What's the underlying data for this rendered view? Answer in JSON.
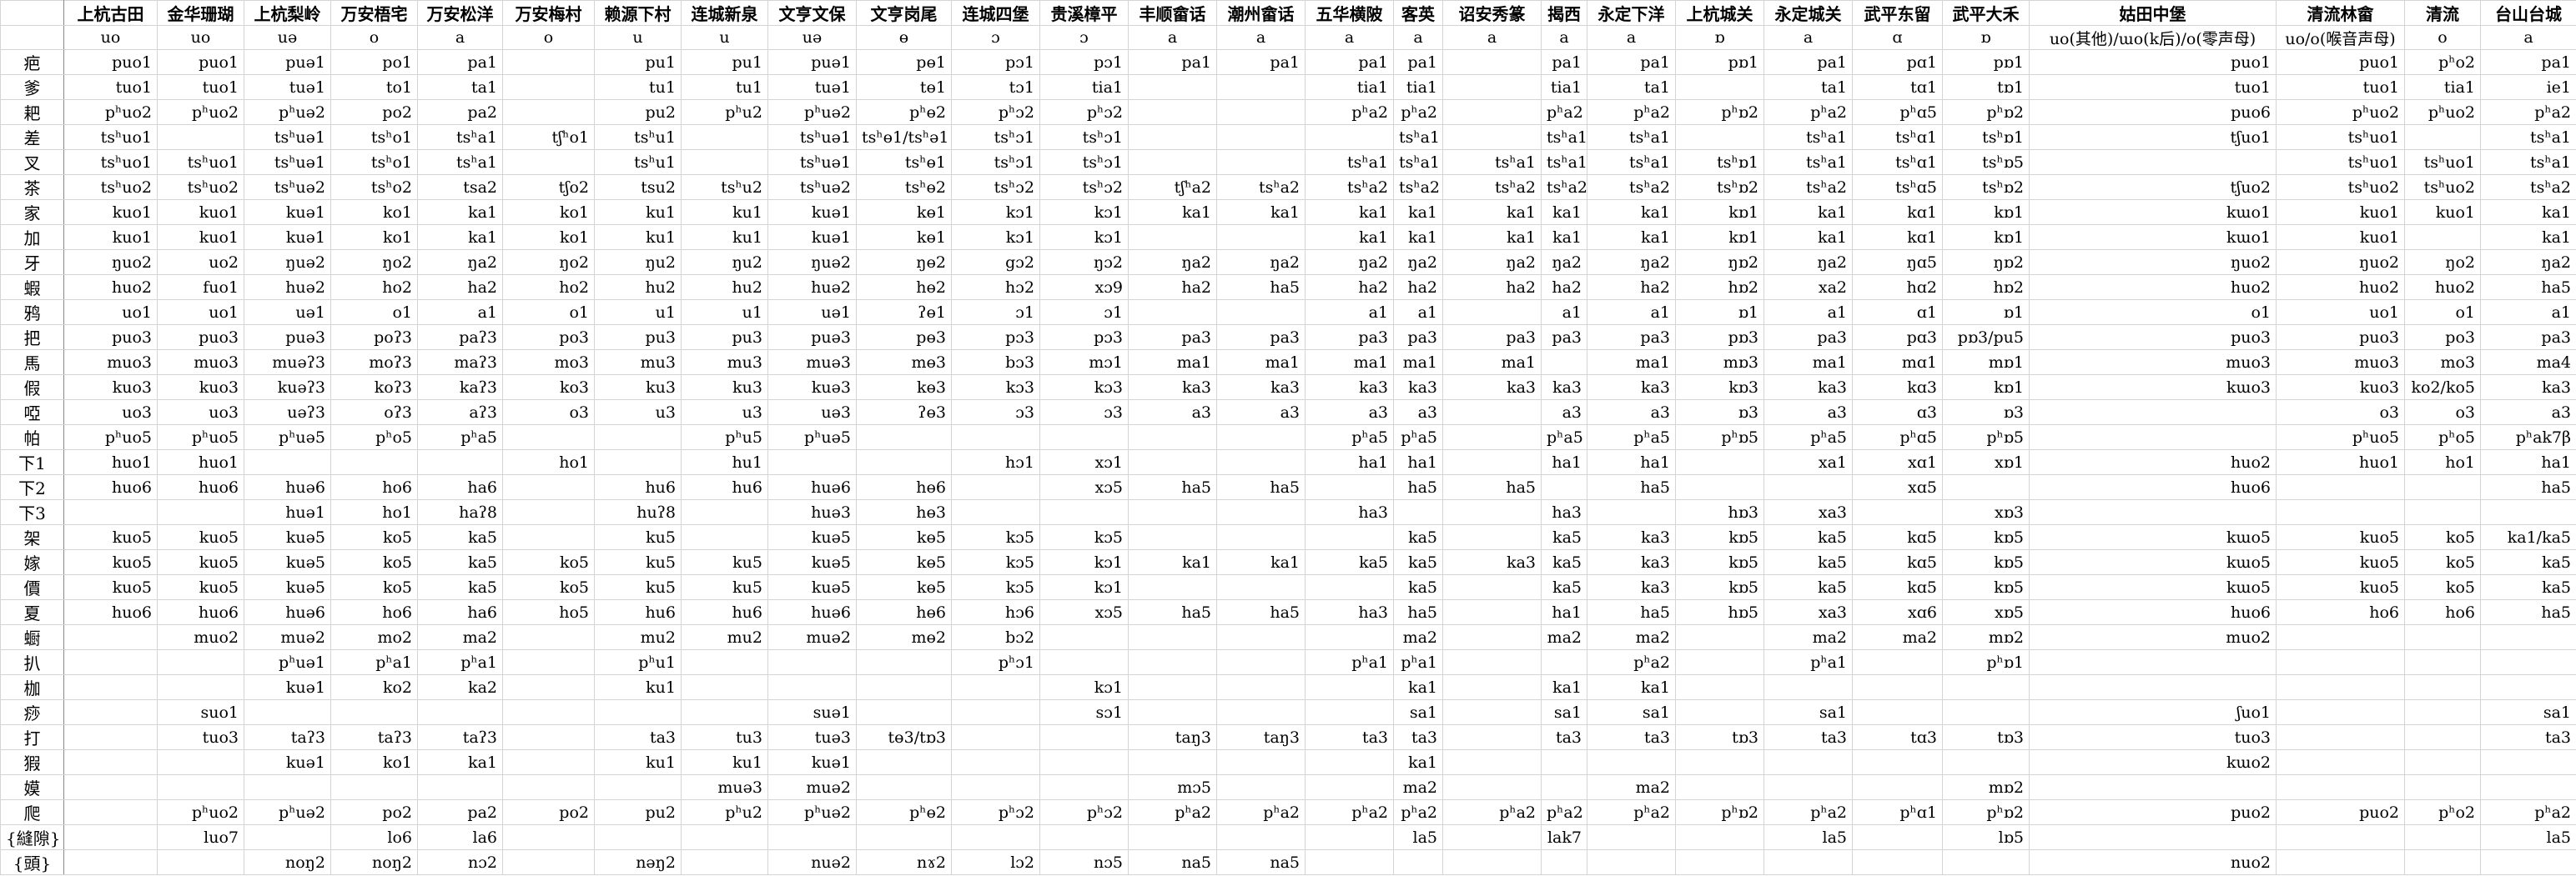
{
  "header": {
    "columns": [
      "上杭古田",
      "金华珊瑚",
      "上杭梨岭",
      "万安梧宅",
      "万安松洋",
      "万安梅村",
      "赖源下村",
      "连城新泉",
      "文亨文保",
      "文亨岗尾",
      "连城四堡",
      "贵溪樟平",
      "丰顺畲话",
      "潮州畲话",
      "五华横陂",
      "客英",
      "诏安秀篆",
      "揭西",
      "永定下洋",
      "上杭城关",
      "永定城关",
      "武平东留",
      "武平大禾",
      "姑田中堡",
      "清流林畲",
      "清流",
      "台山台城"
    ],
    "finals": [
      "uo",
      "uo",
      "uə",
      "o",
      "a",
      "o",
      "u",
      "u",
      "uə",
      "ɵ",
      "ɔ",
      "ɔ",
      "a",
      "a",
      "a",
      "a",
      "a",
      "a",
      "a",
      "ɒ",
      "a",
      "ɑ",
      "ɒ",
      "uo(其他)/ɯo(k后)/o(零声母)",
      "uo/o(喉音声母)",
      "o",
      "a"
    ]
  },
  "table": {
    "rows": [
      [
        "疤",
        "puo1",
        "puo1",
        "puə1",
        "po1",
        "pa1",
        null,
        "pu1",
        "pu1",
        "puə1",
        "pɵ1",
        "pɔ1",
        "pɔ1",
        "pa1",
        "pa1",
        "pa1",
        "pa1",
        null,
        "pa1",
        "pa1",
        "pɒ1",
        "pa1",
        "pɑ1",
        "pɒ1",
        "puo1",
        "puo1",
        "pʰo2",
        "pa1"
      ],
      [
        "爹",
        "tuo1",
        "tuo1",
        "tuə1",
        "to1",
        "ta1",
        null,
        "tu1",
        "tu1",
        "tuə1",
        "tɵ1",
        "tɔ1",
        "tia1",
        null,
        null,
        "tia1",
        "tia1",
        null,
        "tia1",
        "ta1",
        null,
        "ta1",
        "tɑ1",
        "tɒ1",
        "tuo1",
        "tuo1",
        "tia1",
        "ie1"
      ],
      [
        "耙",
        "pʰuo2",
        "pʰuo2",
        "pʰuə2",
        "po2",
        "pa2",
        null,
        "pu2",
        "pʰu2",
        "pʰuə2",
        "pʰɵ2",
        "pʰɔ2",
        "pʰɔ2",
        null,
        null,
        "pʰa2",
        "pʰa2",
        null,
        "pʰa2",
        "pʰa2",
        "pʰɒ2",
        "pʰa2",
        "pʰɑ5",
        "pʰɒ2",
        "puo6",
        "pʰuo2",
        "pʰuo2",
        "pʰa2"
      ],
      [
        "差",
        "tsʰuo1",
        null,
        "tsʰuə1",
        "tsʰo1",
        "tsʰa1",
        "tʃʰo1",
        "tsʰu1",
        null,
        "tsʰuə1",
        "tsʰɵ1/tsʰə1",
        "tsʰɔ1",
        "tsʰɔ1",
        null,
        null,
        null,
        "tsʰa1",
        null,
        "tsʰa1",
        "tsʰa1",
        null,
        "tsʰa1",
        "tsʰɑ1",
        "tsʰɒ1",
        "tʃuo1",
        "tsʰuo1",
        null,
        "tsʰa1"
      ],
      [
        "叉",
        "tsʰuo1",
        "tsʰuo1",
        "tsʰuə1",
        "tsʰo1",
        "tsʰa1",
        null,
        "tsʰu1",
        null,
        "tsʰuə1",
        "tsʰɵ1",
        "tsʰɔ1",
        "tsʰɔ1",
        null,
        null,
        "tsʰa1",
        "tsʰa1",
        "tsʰa1",
        "tsʰa1",
        "tsʰa1",
        "tsʰɒ1",
        "tsʰa1",
        "tsʰɑ1",
        "tsʰɒ5",
        null,
        "tsʰuo1",
        "tsʰuo1",
        "tsʰa1"
      ],
      [
        "茶",
        "tsʰuo2",
        "tsʰuo2",
        "tsʰuə2",
        "tsʰo2",
        "tsa2",
        "tʃo2",
        "tsu2",
        "tsʰu2",
        "tsʰuə2",
        "tsʰɵ2",
        "tsʰɔ2",
        "tsʰɔ2",
        "tʃʰa2",
        "tsʰa2",
        "tsʰa2",
        "tsʰa2",
        "tsʰa2",
        "tsʰa2",
        "tsʰa2",
        "tsʰɒ2",
        "tsʰa2",
        "tsʰɑ5",
        "tsʰɒ2",
        "tʃuo2",
        "tsʰuo2",
        "tsʰuo2",
        "tsʰa2"
      ],
      [
        "家",
        "kuo1",
        "kuo1",
        "kuə1",
        "ko1",
        "ka1",
        "ko1",
        "ku1",
        "ku1",
        "kuə1",
        "kɵ1",
        "kɔ1",
        "kɔ1",
        "ka1",
        "ka1",
        "ka1",
        "ka1",
        "ka1",
        "ka1",
        "ka1",
        "kɒ1",
        "ka1",
        "kɑ1",
        "kɒ1",
        "kɯo1",
        "kuo1",
        "kuo1",
        "ka1"
      ],
      [
        "加",
        "kuo1",
        "kuo1",
        "kuə1",
        "ko1",
        "ka1",
        "ko1",
        "ku1",
        "ku1",
        "kuə1",
        "kɵ1",
        "kɔ1",
        "kɔ1",
        null,
        null,
        "ka1",
        "ka1",
        "ka1",
        "ka1",
        "ka1",
        "kɒ1",
        "ka1",
        "kɑ1",
        "kɒ1",
        "kɯo1",
        "kuo1",
        null,
        "ka1"
      ],
      [
        "牙",
        "ŋuo2",
        "uo2",
        "ŋuə2",
        "ŋo2",
        "ŋa2",
        "ŋo2",
        "ŋu2",
        "ŋu2",
        "ŋuə2",
        "ŋɵ2",
        "gɔ2",
        "ŋɔ2",
        "ŋa2",
        "ŋa2",
        "ŋa2",
        "ŋa2",
        "ŋa2",
        "ŋa2",
        "ŋa2",
        "ŋɒ2",
        "ŋa2",
        "ŋɑ5",
        "ŋɒ2",
        "ŋuo2",
        "ŋuo2",
        "ŋo2",
        "ŋa2"
      ],
      [
        "蝦",
        "huo2",
        "fuo1",
        "huə2",
        "ho2",
        "ha2",
        "ho2",
        "hu2",
        "hu2",
        "huə2",
        "hɵ2",
        "hɔ2",
        "xɔ9",
        "ha2",
        "ha5",
        "ha2",
        "ha2",
        "ha2",
        "ha2",
        "ha2",
        "hɒ2",
        "xa2",
        "hɑ2",
        "hɒ2",
        "huo2",
        "huo2",
        "huo2",
        "ha5"
      ],
      [
        "鸦",
        "uo1",
        "uo1",
        "uə1",
        "o1",
        "a1",
        "o1",
        "u1",
        "u1",
        "uə1",
        "ʔɵ1",
        "ɔ1",
        "ɔ1",
        null,
        null,
        "a1",
        "a1",
        null,
        "a1",
        "a1",
        "ɒ1",
        "a1",
        "ɑ1",
        "ɒ1",
        "o1",
        "uo1",
        "o1",
        "a1"
      ],
      [
        "把",
        "puo3",
        "puo3",
        "puə3",
        "poʔ3",
        "paʔ3",
        "po3",
        "pu3",
        "pu3",
        "puə3",
        "pɵ3",
        "pɔ3",
        "pɔ3",
        "pa3",
        "pa3",
        "pa3",
        "pa3",
        "pa3",
        "pa3",
        "pa3",
        "pɒ3",
        "pa3",
        "pɑ3",
        "pɒ3/pu5",
        "puo3",
        "puo3",
        "po3",
        "pa3"
      ],
      [
        "馬",
        "muo3",
        "muo3",
        "muəʔ3",
        "moʔ3",
        "maʔ3",
        "mo3",
        "mu3",
        "mu3",
        "muə3",
        "mɵ3",
        "bɔ3",
        "mɔ1",
        "ma1",
        "ma1",
        "ma1",
        "ma1",
        "ma1",
        null,
        "ma1",
        "mɒ3",
        "ma1",
        "mɑ1",
        "mɒ1",
        "muo3",
        "muo3",
        "mo3",
        "ma4"
      ],
      [
        "假",
        "kuo3",
        "kuo3",
        "kuəʔ3",
        "koʔ3",
        "kaʔ3",
        "ko3",
        "ku3",
        "ku3",
        "kuə3",
        "kɵ3",
        "kɔ3",
        "kɔ3",
        "ka3",
        "ka3",
        "ka3",
        "ka3",
        "ka3",
        "ka3",
        "ka3",
        "kɒ3",
        "ka3",
        "kɑ3",
        "kɒ1",
        "kɯo3",
        "kuo3",
        "ko2/ko5",
        "ka3"
      ],
      [
        "啞",
        "uo3",
        "uo3",
        "uəʔ3",
        "oʔ3",
        "aʔ3",
        "o3",
        "u3",
        "u3",
        "uə3",
        "ʔɵ3",
        "ɔ3",
        "ɔ3",
        "a3",
        "a3",
        "a3",
        "a3",
        null,
        "a3",
        "a3",
        "ɒ3",
        "a3",
        "ɑ3",
        "ɒ3",
        null,
        "o3",
        "o3",
        "a3"
      ],
      [
        "帕",
        "pʰuo5",
        "pʰuo5",
        "pʰuə5",
        "pʰo5",
        "pʰa5",
        null,
        null,
        "pʰu5",
        "pʰuə5",
        null,
        null,
        null,
        null,
        null,
        "pʰa5",
        "pʰa5",
        null,
        "pʰa5",
        "pʰa5",
        "pʰɒ5",
        "pʰa5",
        "pʰɑ5",
        "pʰɒ5",
        null,
        "pʰuo5",
        "pʰo5",
        "pʰak7β"
      ],
      [
        "下1",
        "huo1",
        "huo1",
        null,
        null,
        null,
        "ho1",
        null,
        "hu1",
        null,
        null,
        "hɔ1",
        "xɔ1",
        null,
        null,
        "ha1",
        "ha1",
        null,
        "ha1",
        "ha1",
        null,
        "xa1",
        "xɑ1",
        "xɒ1",
        "huo2",
        "huo1",
        "ho1",
        "ha1"
      ],
      [
        "下2",
        "huo6",
        "huo6",
        "huə6",
        "ho6",
        "ha6",
        null,
        "hu6",
        "hu6",
        "huə6",
        "hɵ6",
        null,
        "xɔ5",
        "ha5",
        "ha5",
        null,
        "ha5",
        "ha5",
        null,
        "ha5",
        null,
        null,
        "xɑ5",
        null,
        "huo6",
        null,
        null,
        "ha5"
      ],
      [
        "下3",
        null,
        null,
        "huə1",
        "ho1",
        "haʔ8",
        null,
        "huʔ8",
        null,
        "huə3",
        "hɵ3",
        null,
        null,
        null,
        null,
        "ha3",
        null,
        null,
        "ha3",
        null,
        "hɒ3",
        "xa3",
        null,
        "xɒ3",
        null,
        null,
        null,
        null
      ],
      [
        "架",
        "kuo5",
        "kuo5",
        "kuə5",
        "ko5",
        "ka5",
        null,
        "ku5",
        null,
        "kuə5",
        "kɵ5",
        "kɔ5",
        "kɔ5",
        null,
        null,
        null,
        "ka5",
        null,
        "ka5",
        "ka3",
        "kɒ5",
        "ka5",
        "kɑ5",
        "kɒ5",
        "kɯo5",
        "kuo5",
        "ko5",
        "ka1/ka5"
      ],
      [
        "嫁",
        "kuo5",
        "kuo5",
        "kuə5",
        "ko5",
        "ka5",
        "ko5",
        "ku5",
        "ku5",
        "kuə5",
        "kɵ5",
        "kɔ5",
        "kɔ1",
        "ka1",
        "ka1",
        "ka5",
        "ka5",
        "ka3",
        "ka5",
        "ka3",
        "kɒ5",
        "ka5",
        "kɑ5",
        "kɒ5",
        "kɯo5",
        "kuo5",
        "ko5",
        "ka5"
      ],
      [
        "價",
        "kuo5",
        "kuo5",
        "kuə5",
        "ko5",
        "ka5",
        "ko5",
        "ku5",
        "ku5",
        "kuə5",
        "kɵ5",
        "kɔ5",
        "kɔ1",
        null,
        null,
        null,
        "ka5",
        null,
        "ka5",
        "ka3",
        "kɒ5",
        "ka5",
        "kɑ5",
        "kɒ5",
        "kɯo5",
        "kuo5",
        "ko5",
        "ka5"
      ],
      [
        "夏",
        "huo6",
        "huo6",
        "huə6",
        "ho6",
        "ha6",
        "ho5",
        "hu6",
        "hu6",
        "huə6",
        "hɵ6",
        "hɔ6",
        "xɔ5",
        "ha5",
        "ha5",
        "ha3",
        "ha5",
        null,
        "ha1",
        "ha5",
        "hɒ5",
        "xa3",
        "xɑ6",
        "xɒ5",
        "huo6",
        "ho6",
        "ho6",
        "ha5"
      ],
      [
        "蟵",
        null,
        "muo2",
        "muə2",
        "mo2",
        "ma2",
        null,
        "mu2",
        "mu2",
        "muə2",
        "mɵ2",
        "bɔ2",
        null,
        null,
        null,
        null,
        "ma2",
        null,
        "ma2",
        "ma2",
        null,
        "ma2",
        "ma2",
        "mɒ2",
        "muo2",
        null,
        null,
        null
      ],
      [
        "扒",
        null,
        null,
        "pʰuə1",
        "pʰa1",
        "pʰa1",
        null,
        "pʰu1",
        null,
        null,
        null,
        "pʰɔ1",
        null,
        null,
        null,
        "pʰa1",
        "pʰa1",
        null,
        null,
        "pʰa2",
        null,
        "pʰa1",
        null,
        "pʰɒ1",
        null,
        null,
        null,
        null
      ],
      [
        "枷",
        null,
        null,
        "kuə1",
        "ko2",
        "ka2",
        null,
        "ku1",
        null,
        null,
        null,
        null,
        "kɔ1",
        null,
        null,
        null,
        "ka1",
        null,
        "ka1",
        "ka1",
        null,
        null,
        null,
        null,
        null,
        null,
        null,
        null
      ],
      [
        "痧",
        null,
        "suo1",
        null,
        null,
        null,
        null,
        null,
        null,
        "suə1",
        null,
        null,
        "sɔ1",
        null,
        null,
        null,
        "sa1",
        null,
        "sa1",
        "sa1",
        null,
        "sa1",
        null,
        null,
        "ʃuo1",
        null,
        null,
        "sa1"
      ],
      [
        "打",
        null,
        "tuo3",
        "taʔ3",
        "taʔ3",
        "taʔ3",
        null,
        "ta3",
        "tu3",
        "tuə3",
        "tɵ3/tɒ3",
        null,
        null,
        "taŋ3",
        "taŋ3",
        "ta3",
        "ta3",
        null,
        "ta3",
        "ta3",
        "tɒ3",
        "ta3",
        "tɑ3",
        "tɒ3",
        "tuo3",
        null,
        null,
        "ta3"
      ],
      [
        "猳",
        null,
        null,
        "kuə1",
        "ko1",
        "ka1",
        null,
        "ku1",
        "ku1",
        "kuə1",
        null,
        null,
        null,
        null,
        null,
        null,
        "ka1",
        null,
        null,
        null,
        null,
        null,
        null,
        null,
        "kɯo2",
        null,
        null,
        null
      ],
      [
        "嫫",
        null,
        null,
        null,
        null,
        null,
        null,
        null,
        "muə3",
        "muə2",
        null,
        null,
        null,
        "mɔ5",
        null,
        null,
        "ma2",
        null,
        null,
        "ma2",
        null,
        null,
        null,
        "mɒ2",
        null,
        null,
        null,
        null
      ],
      [
        "爬",
        null,
        "pʰuo2",
        "pʰuə2",
        "po2",
        "pa2",
        "po2",
        "pu2",
        "pʰu2",
        "pʰuə2",
        "pʰɵ2",
        "pʰɔ2",
        "pʰɔ2",
        "pʰa2",
        "pʰa2",
        "pʰa2",
        "pʰa2",
        "pʰa2",
        "pʰa2",
        "pʰa2",
        "pʰɒ2",
        "pʰa2",
        "pʰɑ1",
        "pʰɒ2",
        "puo2",
        "puo2",
        "pʰo2",
        "pʰa2"
      ],
      [
        "{縫隙}",
        null,
        "luo7",
        null,
        "lo6",
        "la6",
        null,
        null,
        null,
        null,
        null,
        null,
        null,
        null,
        null,
        null,
        "la5",
        null,
        "lak7",
        null,
        null,
        "la5",
        null,
        "lɒ5",
        null,
        null,
        null,
        "la5"
      ],
      [
        "{頭}",
        null,
        null,
        "noŋ2",
        "noŋ2",
        "nɔ2",
        null,
        "nəŋ2",
        null,
        "nuə2",
        "nɤ2",
        "lɔ2",
        "nɔ5",
        "na5",
        "na5",
        null,
        null,
        null,
        null,
        null,
        null,
        null,
        null,
        null,
        "nuo2",
        null,
        null,
        null
      ]
    ]
  }
}
